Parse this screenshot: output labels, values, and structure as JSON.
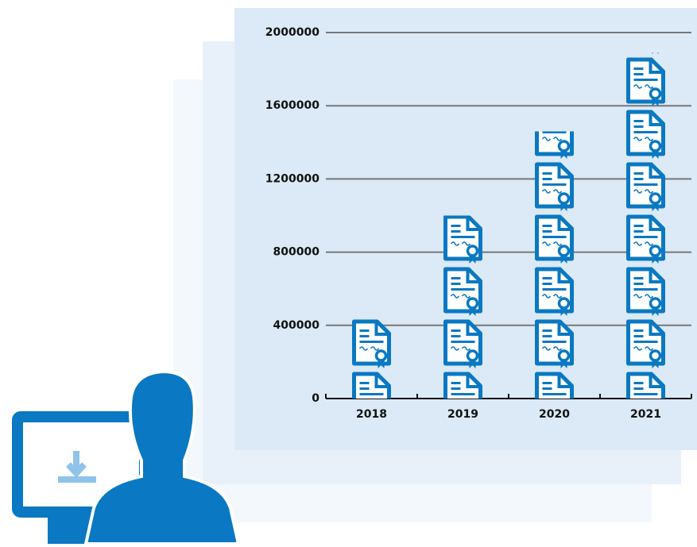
{
  "chart_data": {
    "type": "bar",
    "categories": [
      "2018",
      "2019",
      "2020",
      "2021"
    ],
    "values": [
      450000,
      1000000,
      1460000,
      1890000
    ],
    "color": "#0a78c2",
    "ylim": [
      0,
      2000000
    ],
    "yticks": [
      0,
      400000,
      800000,
      1200000,
      1600000,
      2000000
    ],
    "grid": true
  }
}
